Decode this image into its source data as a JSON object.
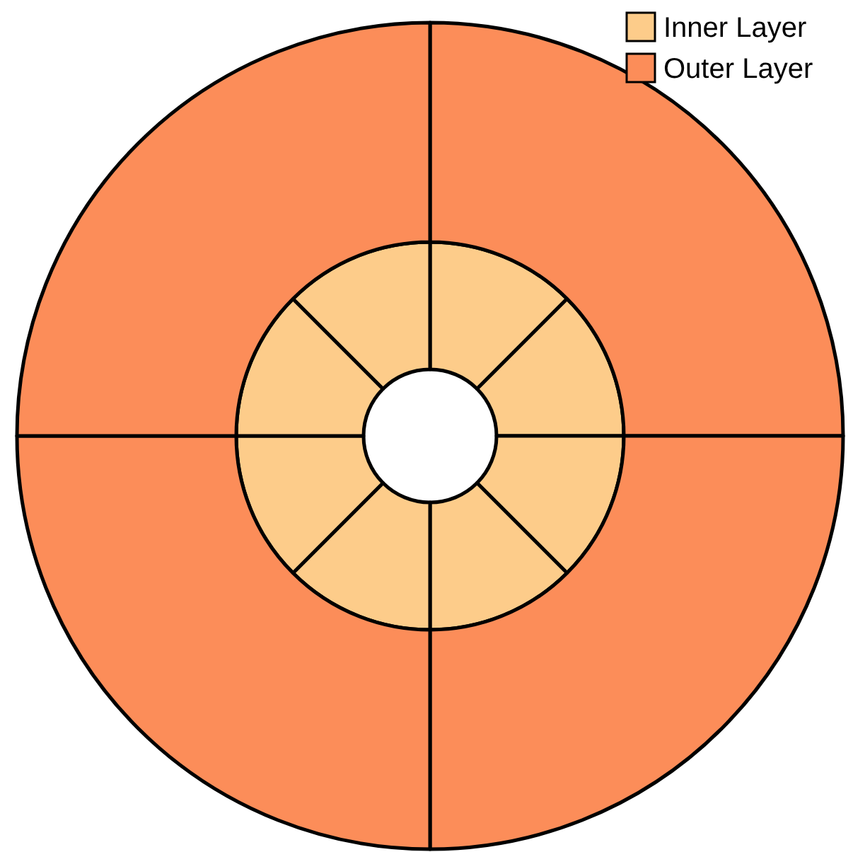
{
  "chart_data": [
    {
      "type": "donut",
      "legend": "top right",
      "categories": [
        null,
        null,
        null,
        null,
        null,
        null,
        null,
        null
      ],
      "series": [
        {
          "name": "Inner Layer",
          "color": "#fdcc8a",
          "values": [
            12.5,
            12.5,
            12.5,
            12.5,
            12.5,
            12.5,
            12.5,
            12.5
          ]
        }
      ]
    },
    {
      "type": "donut",
      "legend": "top right",
      "categories": [
        null,
        null,
        null,
        null
      ],
      "series": [
        {
          "name": "Outer Layer",
          "color": "#fc8d59",
          "values": [
            25,
            25,
            25,
            25
          ]
        }
      ]
    }
  ]
}
